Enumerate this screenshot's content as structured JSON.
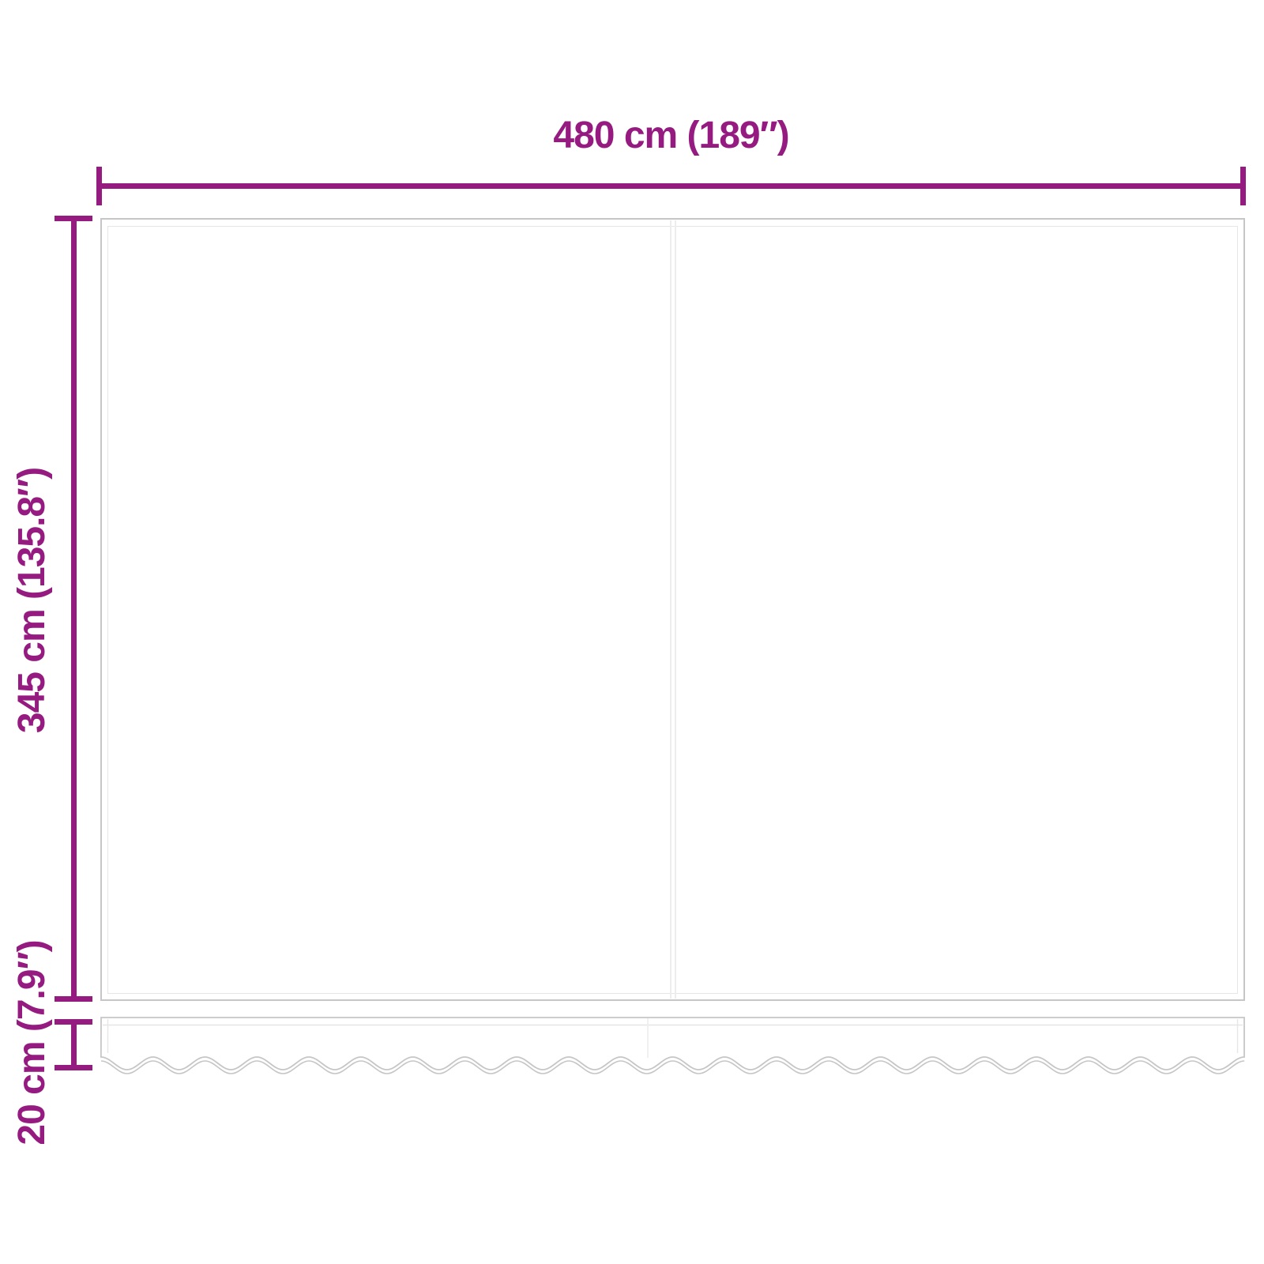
{
  "diagram": {
    "kind": "dimension-diagram"
  },
  "dimension_labels": {
    "width": "480 cm (189″)",
    "height": "345 cm (135.8″)",
    "valance_height": "20 cm (7.9″)"
  },
  "dimension_values": {
    "width_cm": "480",
    "width_in": "189",
    "height_cm": "345",
    "height_in": "135.8",
    "valance_height_cm": "20",
    "valance_height_in": "7.9"
  },
  "colors": {
    "dimension_accent": "#951B81",
    "fabric_outline": "#c6c6c6",
    "hem_line": "#e6e6e6",
    "seam_line": "#ededed",
    "background": "#ffffff"
  }
}
